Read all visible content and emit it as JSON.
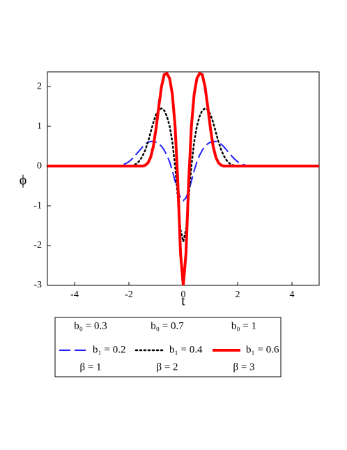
{
  "chart_data": {
    "type": "line",
    "xlabel": "t",
    "ylabel": "ϕ",
    "x": [
      -5,
      -2.6,
      -2.5,
      -2.4,
      -2.3,
      -2.2,
      -2.1,
      -2.0,
      -1.9,
      -1.8,
      -1.7,
      -1.6,
      -1.5,
      -1.4,
      -1.3,
      -1.2,
      -1.1,
      -1.0,
      -0.9,
      -0.8,
      -0.7,
      -0.6,
      -0.5,
      -0.4,
      -0.3,
      -0.2,
      -0.1,
      0,
      0.1,
      0.2,
      0.3,
      0.4,
      0.5,
      0.6,
      0.7,
      0.8,
      0.9,
      1.0,
      1.1,
      1.2,
      1.3,
      1.4,
      1.5,
      1.6,
      1.7,
      1.8,
      1.9,
      2.0,
      2.1,
      2.2,
      2.3,
      2.4,
      2.5,
      2.6,
      5
    ],
    "series": [
      {
        "name": [
          "b₀ = 0.3",
          "b₁ = 0.2",
          "β = 1"
        ],
        "color": "#1f1fff",
        "style": "dash",
        "width": 2,
        "values": [
          0,
          0,
          0,
          0.01,
          0.02,
          0.04,
          0.07,
          0.11,
          0.17,
          0.24,
          0.32,
          0.4,
          0.48,
          0.55,
          0.6,
          0.62,
          0.62,
          0.6,
          0.56,
          0.5,
          0.4,
          0.27,
          0.1,
          -0.12,
          -0.38,
          -0.62,
          -0.8,
          -0.87,
          -0.8,
          -0.62,
          -0.38,
          -0.12,
          0.1,
          0.27,
          0.4,
          0.5,
          0.56,
          0.6,
          0.62,
          0.62,
          0.6,
          0.55,
          0.48,
          0.4,
          0.32,
          0.24,
          0.17,
          0.11,
          0.07,
          0.04,
          0.02,
          0.01,
          0,
          0,
          0
        ]
      },
      {
        "name": [
          "b₀ = 0.7",
          "b₁ = 0.4",
          "β = 2"
        ],
        "color": "#000000",
        "style": "dot",
        "width": 2.5,
        "values": [
          0,
          0,
          0,
          0,
          0,
          0,
          0,
          0,
          0.01,
          0.03,
          0.07,
          0.14,
          0.25,
          0.4,
          0.6,
          0.85,
          1.1,
          1.3,
          1.42,
          1.45,
          1.4,
          1.25,
          1.0,
          0.6,
          0.0,
          -0.8,
          -1.6,
          -1.9,
          -1.6,
          -0.8,
          0.0,
          0.6,
          1.0,
          1.25,
          1.4,
          1.45,
          1.42,
          1.3,
          1.1,
          0.85,
          0.6,
          0.4,
          0.25,
          0.14,
          0.07,
          0.03,
          0.01,
          0,
          0,
          0,
          0,
          0,
          0,
          0,
          0
        ]
      },
      {
        "name": [
          "b₀ = 1",
          "b₁ = 0.6",
          "β = 3"
        ],
        "color": "#ff0000",
        "style": "solid",
        "width": 4,
        "values": [
          0,
          0,
          0,
          0,
          0,
          0,
          0,
          0,
          0,
          0,
          0,
          0,
          0,
          0.02,
          0.08,
          0.22,
          0.5,
          0.95,
          1.5,
          2.0,
          2.3,
          2.33,
          2.2,
          1.8,
          1.0,
          -0.4,
          -2.2,
          -3.0,
          -2.2,
          -0.4,
          1.0,
          1.8,
          2.2,
          2.33,
          2.3,
          2.0,
          1.5,
          0.95,
          0.5,
          0.22,
          0.08,
          0.02,
          0,
          0,
          0,
          0,
          0,
          0,
          0,
          0,
          0,
          0,
          0,
          0,
          0
        ]
      }
    ],
    "xlim": [
      -5,
      5
    ],
    "ylim": [
      -3,
      2.37
    ],
    "xticks": [
      -4,
      -2,
      0,
      2,
      4
    ],
    "yticks": [
      -3,
      -2,
      -1,
      0,
      1,
      2
    ]
  }
}
